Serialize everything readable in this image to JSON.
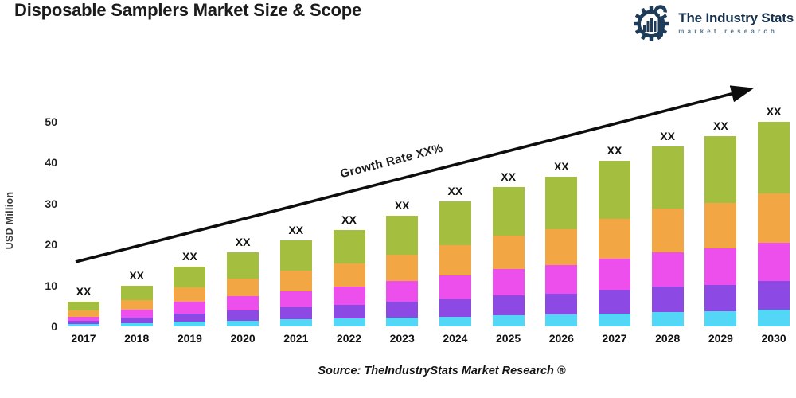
{
  "title": "Disposable Samplers Market Size & Scope",
  "logo": {
    "name": "The Industry Stats",
    "subtitle": "market research",
    "navy": "#1d3c59",
    "subtitle_color": "#5d7a90"
  },
  "source": "Source: TheIndustryStats Market Research ®",
  "chart_data": {
    "type": "bar",
    "stacked": true,
    "title": "",
    "xlabel": "",
    "ylabel": "USD Million",
    "ylim": [
      0,
      50
    ],
    "yticks": [
      0,
      10,
      20,
      30,
      40,
      50
    ],
    "grid": false,
    "legend": "none",
    "bar_value_label": "XX",
    "annotation": "Growth Rate XX%",
    "arrow_color": "#0d0d0d",
    "categories": [
      "2017",
      "2018",
      "2019",
      "2020",
      "2021",
      "2022",
      "2023",
      "2024",
      "2025",
      "2026",
      "2027",
      "2028",
      "2029",
      "2030"
    ],
    "series": [
      {
        "name": "segment-cyan",
        "color": "#52d7f7",
        "values": [
          0.5,
          0.8,
          1.2,
          1.4,
          1.7,
          1.9,
          2.2,
          2.4,
          2.7,
          2.9,
          3.2,
          3.5,
          3.7,
          4.0
        ]
      },
      {
        "name": "segment-purple",
        "color": "#8c49e4",
        "values": [
          0.8,
          1.4,
          2.0,
          2.5,
          2.9,
          3.3,
          3.8,
          4.3,
          4.8,
          5.1,
          5.7,
          6.2,
          6.5,
          7.0
        ]
      },
      {
        "name": "segment-magenta",
        "color": "#ec4fec",
        "values": [
          1.1,
          1.9,
          2.8,
          3.4,
          4.0,
          4.5,
          5.1,
          5.8,
          6.5,
          6.9,
          7.7,
          8.4,
          8.8,
          9.5
        ]
      },
      {
        "name": "segment-orange",
        "color": "#f2a644",
        "values": [
          1.4,
          2.4,
          3.5,
          4.3,
          5.0,
          5.6,
          6.5,
          7.3,
          8.2,
          8.8,
          9.7,
          10.6,
          11.2,
          12.0
        ]
      },
      {
        "name": "segment-green",
        "color": "#a4bf3f",
        "values": [
          2.2,
          3.5,
          5.0,
          6.4,
          7.4,
          8.2,
          9.4,
          10.7,
          11.8,
          12.8,
          14.2,
          15.3,
          16.3,
          17.5
        ]
      }
    ],
    "totals_estimated": [
      6.0,
      10.0,
      14.5,
      18.0,
      21.0,
      23.5,
      27.0,
      30.5,
      34.0,
      36.5,
      40.5,
      44.0,
      46.5,
      50.0
    ]
  }
}
